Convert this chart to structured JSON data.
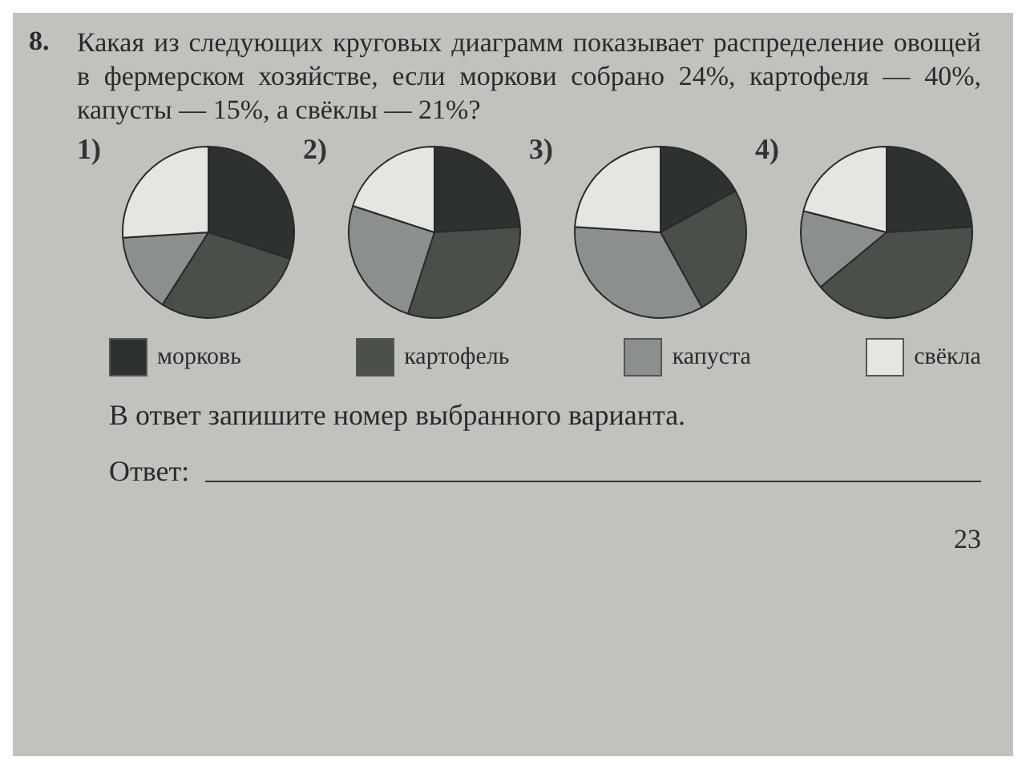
{
  "chart_data": [
    {
      "type": "pie",
      "title": "1)",
      "categories": [
        "морковь",
        "картофель",
        "капуста",
        "свёкла"
      ],
      "values": [
        30,
        29,
        15,
        26
      ],
      "colors": [
        "#2e322e",
        "#4a4f4a",
        "#8c908c",
        "#e4e6e2"
      ],
      "legend": "bottom",
      "subtitle": "Какая из следующих круговых диаграмм показывает распределение овощей в фермерском хозяйстве, если моркови собрано 24%, картофеля — 40%, капусты — 15%, а свёклы — 21%?",
      "annotations": [
        "8.",
        "В ответ запишите номер выбранного варианта.",
        "Ответ:",
        "23"
      ]
    },
    {
      "type": "pie",
      "title": "2)",
      "categories": [
        null,
        null,
        null,
        null
      ],
      "values": [
        24,
        31,
        25,
        20
      ],
      "colors": [
        "#2e322e",
        "#4a4f4a",
        "#8c908c",
        "#e4e6e2"
      ]
    },
    {
      "type": "pie",
      "title": "3)",
      "categories": [
        null,
        null,
        null,
        null
      ],
      "values": [
        17,
        25,
        34,
        24
      ],
      "colors": [
        "#2e322e",
        "#4a4f4a",
        "#8c908c",
        "#e4e6e2"
      ]
    },
    {
      "type": "pie",
      "title": "4)",
      "categories": [
        null,
        null,
        null,
        null
      ],
      "values": [
        24,
        40,
        15,
        21
      ],
      "colors": [
        "#2e322e",
        "#4a4f4a",
        "#8c908c",
        "#e4e6e2"
      ]
    }
  ]
}
